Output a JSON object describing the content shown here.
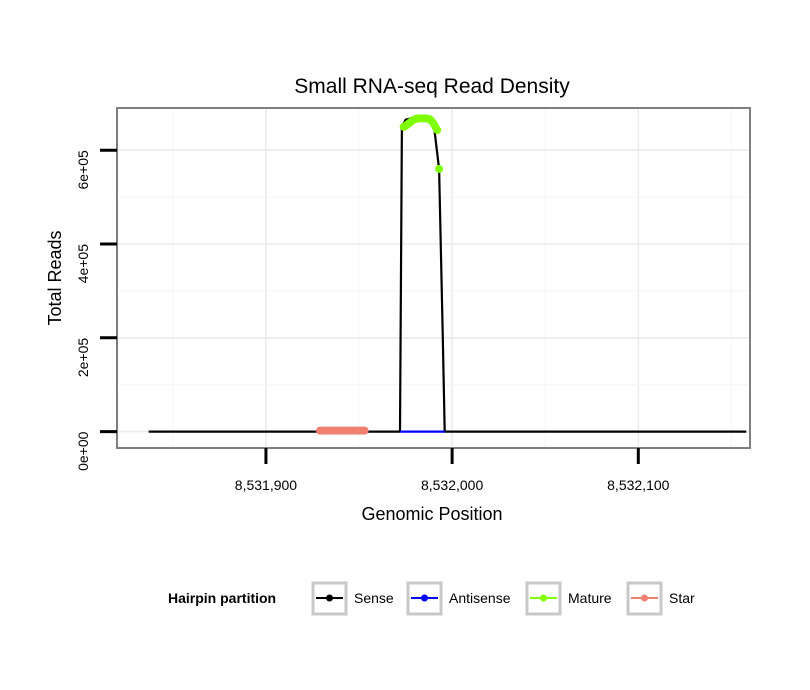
{
  "chart_data": {
    "type": "line",
    "title": "Small RNA-seq Read Density",
    "xlabel": "Genomic Position",
    "ylabel": "Total Reads",
    "xlim": [
      8531820,
      8532160
    ],
    "ylim": [
      -35000,
      690000
    ],
    "x_ticks": [
      {
        "value": 8531900,
        "label": "8,531,900"
      },
      {
        "value": 8532000,
        "label": "8,532,000"
      },
      {
        "value": 8532100,
        "label": "8,532,100"
      }
    ],
    "y_ticks": [
      {
        "value": 0,
        "label": "0e+00"
      },
      {
        "value": 200000,
        "label": "2e+05"
      },
      {
        "value": 400000,
        "label": "4e+05"
      },
      {
        "value": 600000,
        "label": "6e+05"
      }
    ],
    "grid": true,
    "series": [
      {
        "name": "Sense",
        "color": "#000000",
        "line": true,
        "points": false,
        "x": [
          8531837,
          8531972,
          8531973,
          8531975,
          8531980,
          8531990,
          8531993,
          8531995,
          8531996,
          8532158
        ],
        "y": [
          0,
          0,
          650000,
          665000,
          670000,
          660000,
          560000,
          200000,
          0,
          0
        ]
      },
      {
        "name": "Antisense",
        "color": "#0000ff",
        "line": true,
        "points": false,
        "x": [
          8531972,
          8531996
        ],
        "y": [
          0,
          0
        ]
      },
      {
        "name": "Mature",
        "color": "#7fff00",
        "line": false,
        "points": true,
        "x": [
          8531974,
          8531975,
          8531976,
          8531977,
          8531978,
          8531979,
          8531980,
          8531981,
          8531982,
          8531983,
          8531984,
          8531985,
          8531986,
          8531987,
          8531988,
          8531989,
          8531990,
          8531991,
          8531992,
          8531993
        ],
        "y": [
          650000,
          652000,
          655000,
          658000,
          661000,
          664000,
          666000,
          667000,
          668000,
          668000,
          668000,
          668000,
          668000,
          667000,
          666000,
          662000,
          657000,
          650000,
          643000,
          560000
        ]
      },
      {
        "name": "Star",
        "color": "#f08070",
        "line": false,
        "points": true,
        "x": [
          8531929,
          8531930,
          8531931,
          8531932,
          8531933,
          8531934,
          8531935,
          8531936,
          8531937,
          8531938,
          8531939,
          8531940,
          8531941,
          8531942,
          8531943,
          8531944,
          8531945,
          8531946,
          8531947,
          8531948,
          8531949,
          8531950,
          8531951,
          8531952,
          8531953
        ],
        "y": [
          2000,
          2000,
          2000,
          2000,
          2000,
          2000,
          2000,
          2000,
          2000,
          2000,
          2000,
          2000,
          2000,
          2000,
          2000,
          2000,
          2000,
          2000,
          2000,
          2000,
          2000,
          2000,
          2000,
          2000,
          2000
        ]
      }
    ],
    "legend": {
      "title": "Hairpin partition",
      "position": "bottom",
      "entries": [
        "Sense",
        "Antisense",
        "Mature",
        "Star"
      ]
    }
  }
}
